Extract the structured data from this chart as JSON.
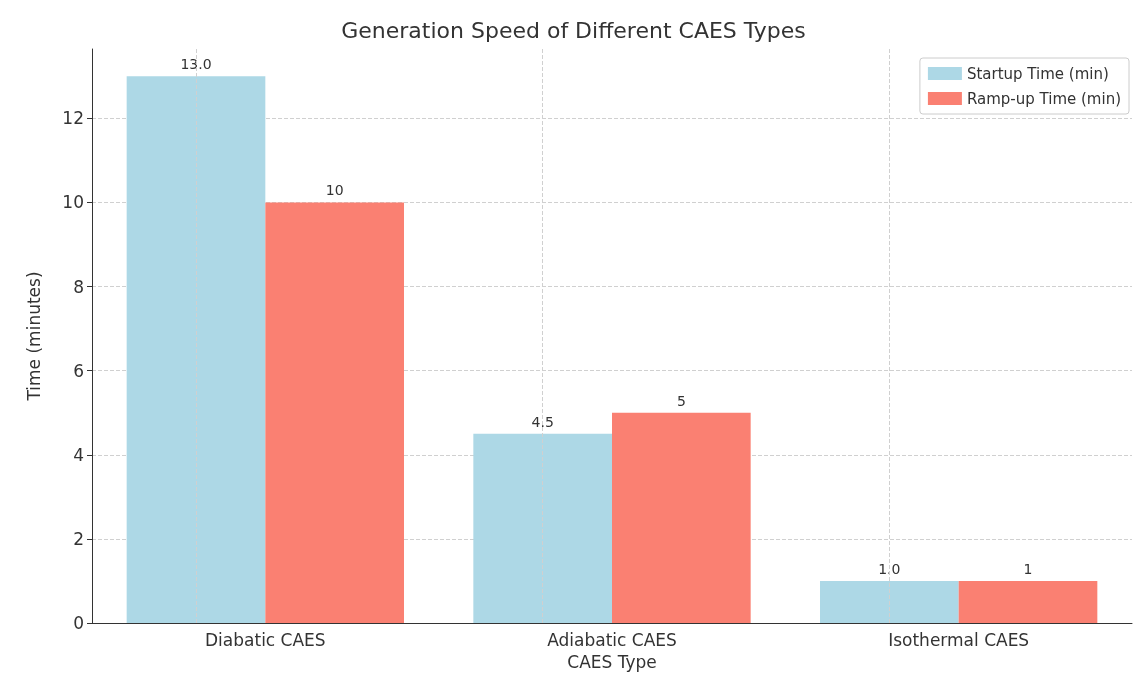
{
  "chart_data": {
    "type": "bar",
    "title": "Generation Speed of Different CAES Types",
    "xlabel": "CAES Type",
    "ylabel": "Time (minutes)",
    "categories": [
      "Diabatic CAES",
      "Adiabatic CAES",
      "Isothermal CAES"
    ],
    "series": [
      {
        "name": "Startup Time (min)",
        "color": "#add8e6",
        "values": [
          13.0,
          4.5,
          1.0
        ],
        "value_labels": [
          "13.0",
          "4.5",
          "1.0"
        ]
      },
      {
        "name": "Ramp-up Time (min)",
        "color": "#fa8072",
        "values": [
          10,
          5,
          1
        ],
        "value_labels": [
          "10",
          "5",
          "1"
        ]
      }
    ],
    "ylim": [
      0,
      13.65
    ],
    "yticks": [
      0,
      2,
      4,
      6,
      8,
      10,
      12
    ],
    "grid": true,
    "legend": "top right"
  }
}
